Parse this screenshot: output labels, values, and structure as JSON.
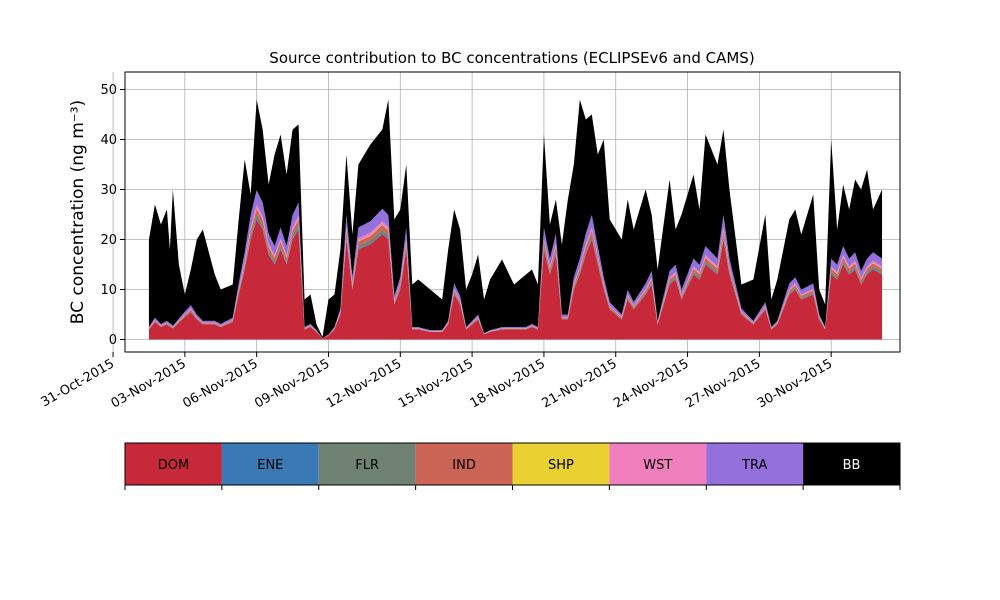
{
  "chart_data": {
    "type": "area",
    "stacked": true,
    "title": "Source contribution to BC concentrations (ECLIPSEv6 and CAMS)",
    "xlabel": "",
    "ylabel": "BC concentration (ng m⁻³)",
    "x_start": "2015-11-01T12:00",
    "x_step_hours": 3,
    "xlim": [
      "2015-10-31T12:00",
      "2015-12-02T21:00"
    ],
    "ylim": [
      -2.5,
      53.5
    ],
    "yticks": [
      0,
      10,
      20,
      30,
      40,
      50
    ],
    "xticks": [
      {
        "date": "2015-10-31",
        "label": "31-Oct-2015"
      },
      {
        "date": "2015-11-03",
        "label": "03-Nov-2015"
      },
      {
        "date": "2015-11-06",
        "label": "06-Nov-2015"
      },
      {
        "date": "2015-11-09",
        "label": "09-Nov-2015"
      },
      {
        "date": "2015-11-12",
        "label": "12-Nov-2015"
      },
      {
        "date": "2015-11-15",
        "label": "15-Nov-2015"
      },
      {
        "date": "2015-11-18",
        "label": "18-Nov-2015"
      },
      {
        "date": "2015-11-21",
        "label": "21-Nov-2015"
      },
      {
        "date": "2015-11-24",
        "label": "24-Nov-2015"
      },
      {
        "date": "2015-11-27",
        "label": "27-Nov-2015"
      },
      {
        "date": "2015-11-30",
        "label": "30-Nov-2015"
      }
    ],
    "grid": true,
    "legend_placement": "bottom",
    "dom_key": [
      [
        "2015-11-01T12:00",
        2
      ],
      [
        "2015-11-01T18:00",
        3.5
      ],
      [
        "2015-11-02T00:00",
        2.5
      ],
      [
        "2015-11-02T06:00",
        3
      ],
      [
        "2015-11-02T12:00",
        2.2
      ],
      [
        "2015-11-03T00:00",
        4.5
      ],
      [
        "2015-11-03T06:00",
        5.5
      ],
      [
        "2015-11-03T12:00",
        4
      ],
      [
        "2015-11-03T18:00",
        3
      ],
      [
        "2015-11-04T06:00",
        3
      ],
      [
        "2015-11-04T12:00",
        2.5
      ],
      [
        "2015-11-05T00:00",
        3.5
      ],
      [
        "2015-11-05T06:00",
        9
      ],
      [
        "2015-11-05T12:00",
        14
      ],
      [
        "2015-11-05T18:00",
        20
      ],
      [
        "2015-11-06T00:00",
        24
      ],
      [
        "2015-11-06T06:00",
        22
      ],
      [
        "2015-11-06T12:00",
        17
      ],
      [
        "2015-11-06T18:00",
        15
      ],
      [
        "2015-11-07T00:00",
        18
      ],
      [
        "2015-11-07T06:00",
        15
      ],
      [
        "2015-11-07T12:00",
        20
      ],
      [
        "2015-11-07T18:00",
        22
      ],
      [
        "2015-11-08T00:00",
        2
      ],
      [
        "2015-11-08T06:00",
        2.5
      ],
      [
        "2015-11-08T12:00",
        1.5
      ],
      [
        "2015-11-08T18:00",
        0.2
      ],
      [
        "2015-11-09T00:00",
        0.8
      ],
      [
        "2015-11-09T06:00",
        2
      ],
      [
        "2015-11-09T12:00",
        5
      ],
      [
        "2015-11-09T18:00",
        20
      ],
      [
        "2015-11-10T00:00",
        10
      ],
      [
        "2015-11-10T06:00",
        18
      ],
      [
        "2015-11-10T18:00",
        19
      ],
      [
        "2015-11-11T06:00",
        21
      ],
      [
        "2015-11-11T12:00",
        20
      ],
      [
        "2015-11-11T18:00",
        7
      ],
      [
        "2015-11-12T00:00",
        10
      ],
      [
        "2015-11-12T06:00",
        18
      ],
      [
        "2015-11-12T12:00",
        2
      ],
      [
        "2015-11-12T18:00",
        2
      ],
      [
        "2015-11-13T06:00",
        1.5
      ],
      [
        "2015-11-13T18:00",
        1.5
      ],
      [
        "2015-11-14T00:00",
        3
      ],
      [
        "2015-11-14T06:00",
        9
      ],
      [
        "2015-11-14T12:00",
        7
      ],
      [
        "2015-11-14T18:00",
        2
      ],
      [
        "2015-11-15T00:00",
        3
      ],
      [
        "2015-11-15T06:00",
        4
      ],
      [
        "2015-11-15T12:00",
        1
      ],
      [
        "2015-11-15T18:00",
        1.5
      ],
      [
        "2015-11-16T06:00",
        2
      ],
      [
        "2015-11-16T18:00",
        2
      ],
      [
        "2015-11-17T06:00",
        2
      ],
      [
        "2015-11-17T12:00",
        2.5
      ],
      [
        "2015-11-17T18:00",
        2
      ],
      [
        "2015-11-18T00:00",
        18
      ],
      [
        "2015-11-18T06:00",
        13
      ],
      [
        "2015-11-18T12:00",
        17
      ],
      [
        "2015-11-18T18:00",
        4
      ],
      [
        "2015-11-19T00:00",
        4
      ],
      [
        "2015-11-19T06:00",
        10
      ],
      [
        "2015-11-19T12:00",
        13
      ],
      [
        "2015-11-19T18:00",
        17
      ],
      [
        "2015-11-20T00:00",
        20
      ],
      [
        "2015-11-20T06:00",
        15
      ],
      [
        "2015-11-20T12:00",
        10
      ],
      [
        "2015-11-20T18:00",
        6
      ],
      [
        "2015-11-21T06:00",
        4
      ],
      [
        "2015-11-21T12:00",
        8
      ],
      [
        "2015-11-21T18:00",
        6
      ],
      [
        "2015-11-22T06:00",
        9
      ],
      [
        "2015-11-22T12:00",
        11
      ],
      [
        "2015-11-22T18:00",
        3
      ],
      [
        "2015-11-23T06:00",
        11
      ],
      [
        "2015-11-23T12:00",
        12
      ],
      [
        "2015-11-23T18:00",
        8
      ],
      [
        "2015-11-24T06:00",
        13
      ],
      [
        "2015-11-24T12:00",
        12
      ],
      [
        "2015-11-24T18:00",
        15
      ],
      [
        "2015-11-25T06:00",
        13
      ],
      [
        "2015-11-25T12:00",
        20
      ],
      [
        "2015-11-25T18:00",
        13
      ],
      [
        "2015-11-26T06:00",
        5
      ],
      [
        "2015-11-26T18:00",
        3
      ],
      [
        "2015-11-27T06:00",
        6
      ],
      [
        "2015-11-27T12:00",
        2
      ],
      [
        "2015-11-27T18:00",
        3
      ],
      [
        "2015-11-28T06:00",
        9
      ],
      [
        "2015-11-28T12:00",
        10
      ],
      [
        "2015-11-28T18:00",
        8
      ],
      [
        "2015-11-29T06:00",
        9
      ],
      [
        "2015-11-29T12:00",
        4
      ],
      [
        "2015-11-29T18:00",
        2
      ],
      [
        "2015-11-30T00:00",
        13
      ],
      [
        "2015-11-30T06:00",
        12
      ],
      [
        "2015-11-30T12:00",
        15
      ],
      [
        "2015-11-30T18:00",
        13
      ],
      [
        "2015-12-01T00:00",
        14
      ],
      [
        "2015-12-01T06:00",
        11
      ],
      [
        "2015-12-01T12:00",
        13
      ],
      [
        "2015-12-01T18:00",
        14
      ],
      [
        "2015-12-02T03:00",
        13
      ]
    ],
    "total_key": [
      [
        "2015-11-01T12:00",
        20
      ],
      [
        "2015-11-01T18:00",
        27
      ],
      [
        "2015-11-02T00:00",
        23
      ],
      [
        "2015-11-02T06:00",
        26
      ],
      [
        "2015-11-02T09:00",
        18
      ],
      [
        "2015-11-02T12:00",
        30
      ],
      [
        "2015-11-02T18:00",
        15
      ],
      [
        "2015-11-03T00:00",
        9
      ],
      [
        "2015-11-03T06:00",
        14
      ],
      [
        "2015-11-03T12:00",
        20
      ],
      [
        "2015-11-03T18:00",
        22
      ],
      [
        "2015-11-04T06:00",
        13
      ],
      [
        "2015-11-04T12:00",
        10
      ],
      [
        "2015-11-05T00:00",
        11
      ],
      [
        "2015-11-05T06:00",
        24
      ],
      [
        "2015-11-05T12:00",
        36
      ],
      [
        "2015-11-05T18:00",
        29
      ],
      [
        "2015-11-06T00:00",
        48
      ],
      [
        "2015-11-06T06:00",
        42
      ],
      [
        "2015-11-06T12:00",
        31
      ],
      [
        "2015-11-06T18:00",
        37
      ],
      [
        "2015-11-07T00:00",
        41
      ],
      [
        "2015-11-07T06:00",
        33
      ],
      [
        "2015-11-07T12:00",
        42
      ],
      [
        "2015-11-07T18:00",
        43
      ],
      [
        "2015-11-08T00:00",
        8
      ],
      [
        "2015-11-08T06:00",
        9
      ],
      [
        "2015-11-08T12:00",
        3
      ],
      [
        "2015-11-08T18:00",
        0.5
      ],
      [
        "2015-11-09T00:00",
        8
      ],
      [
        "2015-11-09T06:00",
        9
      ],
      [
        "2015-11-09T12:00",
        18
      ],
      [
        "2015-11-09T18:00",
        37
      ],
      [
        "2015-11-10T00:00",
        21
      ],
      [
        "2015-11-10T06:00",
        35
      ],
      [
        "2015-11-10T18:00",
        39
      ],
      [
        "2015-11-11T06:00",
        42
      ],
      [
        "2015-11-11T12:00",
        48
      ],
      [
        "2015-11-11T18:00",
        24
      ],
      [
        "2015-11-12T00:00",
        26
      ],
      [
        "2015-11-12T06:00",
        35
      ],
      [
        "2015-11-12T12:00",
        11
      ],
      [
        "2015-11-12T18:00",
        12
      ],
      [
        "2015-11-13T06:00",
        10
      ],
      [
        "2015-11-13T18:00",
        8
      ],
      [
        "2015-11-14T00:00",
        18
      ],
      [
        "2015-11-14T06:00",
        26
      ],
      [
        "2015-11-14T12:00",
        22
      ],
      [
        "2015-11-14T18:00",
        10
      ],
      [
        "2015-11-15T00:00",
        13
      ],
      [
        "2015-11-15T06:00",
        17
      ],
      [
        "2015-11-15T12:00",
        8
      ],
      [
        "2015-11-15T18:00",
        12
      ],
      [
        "2015-11-16T06:00",
        16
      ],
      [
        "2015-11-16T18:00",
        11
      ],
      [
        "2015-11-17T06:00",
        13
      ],
      [
        "2015-11-17T12:00",
        14
      ],
      [
        "2015-11-17T18:00",
        11
      ],
      [
        "2015-11-18T00:00",
        41
      ],
      [
        "2015-11-18T06:00",
        23
      ],
      [
        "2015-11-18T12:00",
        28
      ],
      [
        "2015-11-18T18:00",
        19
      ],
      [
        "2015-11-19T00:00",
        28
      ],
      [
        "2015-11-19T06:00",
        35
      ],
      [
        "2015-11-19T12:00",
        48
      ],
      [
        "2015-11-19T18:00",
        44
      ],
      [
        "2015-11-20T00:00",
        45
      ],
      [
        "2015-11-20T06:00",
        37
      ],
      [
        "2015-11-20T12:00",
        40
      ],
      [
        "2015-11-20T18:00",
        24
      ],
      [
        "2015-11-21T06:00",
        20
      ],
      [
        "2015-11-21T12:00",
        28
      ],
      [
        "2015-11-21T18:00",
        22
      ],
      [
        "2015-11-22T06:00",
        30
      ],
      [
        "2015-11-22T12:00",
        25
      ],
      [
        "2015-11-22T18:00",
        14
      ],
      [
        "2015-11-23T06:00",
        32
      ],
      [
        "2015-11-23T12:00",
        22
      ],
      [
        "2015-11-23T18:00",
        25
      ],
      [
        "2015-11-24T06:00",
        33
      ],
      [
        "2015-11-24T12:00",
        26
      ],
      [
        "2015-11-24T18:00",
        41
      ],
      [
        "2015-11-25T06:00",
        35
      ],
      [
        "2015-11-25T12:00",
        42
      ],
      [
        "2015-11-25T18:00",
        30
      ],
      [
        "2015-11-26T06:00",
        11
      ],
      [
        "2015-11-26T18:00",
        12
      ],
      [
        "2015-11-27T06:00",
        25
      ],
      [
        "2015-11-27T12:00",
        8
      ],
      [
        "2015-11-27T18:00",
        12
      ],
      [
        "2015-11-28T06:00",
        24
      ],
      [
        "2015-11-28T12:00",
        26
      ],
      [
        "2015-11-28T18:00",
        21
      ],
      [
        "2015-11-29T06:00",
        29
      ],
      [
        "2015-11-29T12:00",
        10
      ],
      [
        "2015-11-29T18:00",
        7
      ],
      [
        "2015-11-30T00:00",
        40
      ],
      [
        "2015-11-30T06:00",
        22
      ],
      [
        "2015-11-30T12:00",
        31
      ],
      [
        "2015-11-30T18:00",
        26
      ],
      [
        "2015-12-01T00:00",
        32
      ],
      [
        "2015-12-01T06:00",
        30
      ],
      [
        "2015-12-01T12:00",
        34
      ],
      [
        "2015-12-01T18:00",
        26
      ],
      [
        "2015-12-02T03:00",
        30
      ]
    ],
    "series": [
      {
        "name": "DOM",
        "color": "#c7283a",
        "share_of_DOM": 1.0
      },
      {
        "name": "ENE",
        "color": "#3a79b4",
        "share_of_DOM": 0.01
      },
      {
        "name": "FLR",
        "color": "#6f8272",
        "share_of_DOM": 0.03
      },
      {
        "name": "IND",
        "color": "#cc6556",
        "share_of_DOM": 0.05
      },
      {
        "name": "SHP",
        "color": "#e8d130",
        "share_of_DOM": 0.005
      },
      {
        "name": "WST",
        "color": "#f07fbd",
        "share_of_DOM": 0.03
      },
      {
        "name": "TRA",
        "color": "#9370db",
        "share_of_DOM": 0.12
      },
      {
        "name": "BB",
        "color": "#000000",
        "total_envelope": true
      }
    ],
    "legend": [
      {
        "label": "DOM",
        "color": "#c7283a",
        "text_color": "#000000"
      },
      {
        "label": "ENE",
        "color": "#3a79b4",
        "text_color": "#000000"
      },
      {
        "label": "FLR",
        "color": "#6f8272",
        "text_color": "#000000"
      },
      {
        "label": "IND",
        "color": "#cc6556",
        "text_color": "#000000"
      },
      {
        "label": "SHP",
        "color": "#e8d130",
        "text_color": "#000000"
      },
      {
        "label": "WST",
        "color": "#f07fbd",
        "text_color": "#000000"
      },
      {
        "label": "TRA",
        "color": "#9370db",
        "text_color": "#000000"
      },
      {
        "label": "BB",
        "color": "#000000",
        "text_color": "#ffffff"
      }
    ]
  }
}
